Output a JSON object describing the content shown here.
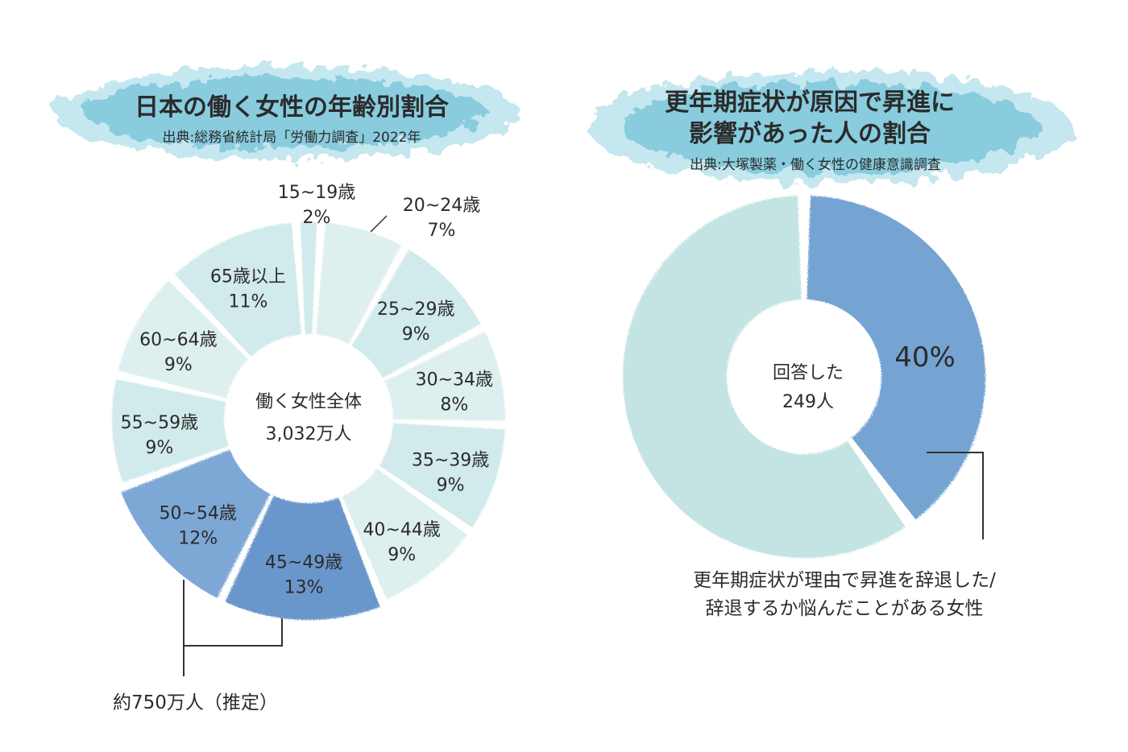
{
  "chart_data": [
    {
      "type": "pie",
      "variant": "donut",
      "title": "日本の働く女性の年齢別割合",
      "source": "出典:総務省統計局「労働力調査」2022年",
      "center_label": "働く女性全体",
      "center_value": "3,032万人",
      "slices": [
        {
          "label": "15~19歳",
          "value": 2,
          "value_label": "2%",
          "highlight": false
        },
        {
          "label": "20~24歳",
          "value": 7,
          "value_label": "7%",
          "highlight": false
        },
        {
          "label": "25~29歳",
          "value": 9,
          "value_label": "9%",
          "highlight": false
        },
        {
          "label": "30~34歳",
          "value": 8,
          "value_label": "8%",
          "highlight": false
        },
        {
          "label": "35~39歳",
          "value": 9,
          "value_label": "9%",
          "highlight": false
        },
        {
          "label": "40~44歳",
          "value": 9,
          "value_label": "9%",
          "highlight": false
        },
        {
          "label": "45~49歳",
          "value": 13,
          "value_label": "13%",
          "highlight": true
        },
        {
          "label": "50~54歳",
          "value": 12,
          "value_label": "12%",
          "highlight": true
        },
        {
          "label": "55~59歳",
          "value": 9,
          "value_label": "9%",
          "highlight": false
        },
        {
          "label": "60~64歳",
          "value": 9,
          "value_label": "9%",
          "highlight": false
        },
        {
          "label": "65歳以上",
          "value": 11,
          "value_label": "11%",
          "highlight": false
        }
      ],
      "annotation": "約750万人（推定）"
    },
    {
      "type": "pie",
      "variant": "donut",
      "title_line1": "更年期症状が原因で昇進に",
      "title_line2": "影響があった人の割合",
      "source": "出典:大塚製薬・働く女性の健康意識調査",
      "center_label": "回答した",
      "center_value": "249人",
      "slices": [
        {
          "value": 40,
          "value_label": "40%",
          "highlight": true
        },
        {
          "value": 60,
          "highlight": false
        }
      ],
      "annotation_line1": "更年期症状が理由で昇進を辞退した/",
      "annotation_line2": "辞退するか悩んだことがある女性"
    }
  ],
  "colors": {
    "banner": "#7ec8dc",
    "banner_light": "#bfe5ee",
    "slice_light": "#dcefee",
    "slice_light_alt": "#cfe9ea",
    "slice_highlight": "#6f9fd2",
    "slice_highlight_dark": "#5a8cc6",
    "right_light": "#bfe2e2",
    "right_highlight": "#6a9dd0",
    "line": "#333333"
  }
}
